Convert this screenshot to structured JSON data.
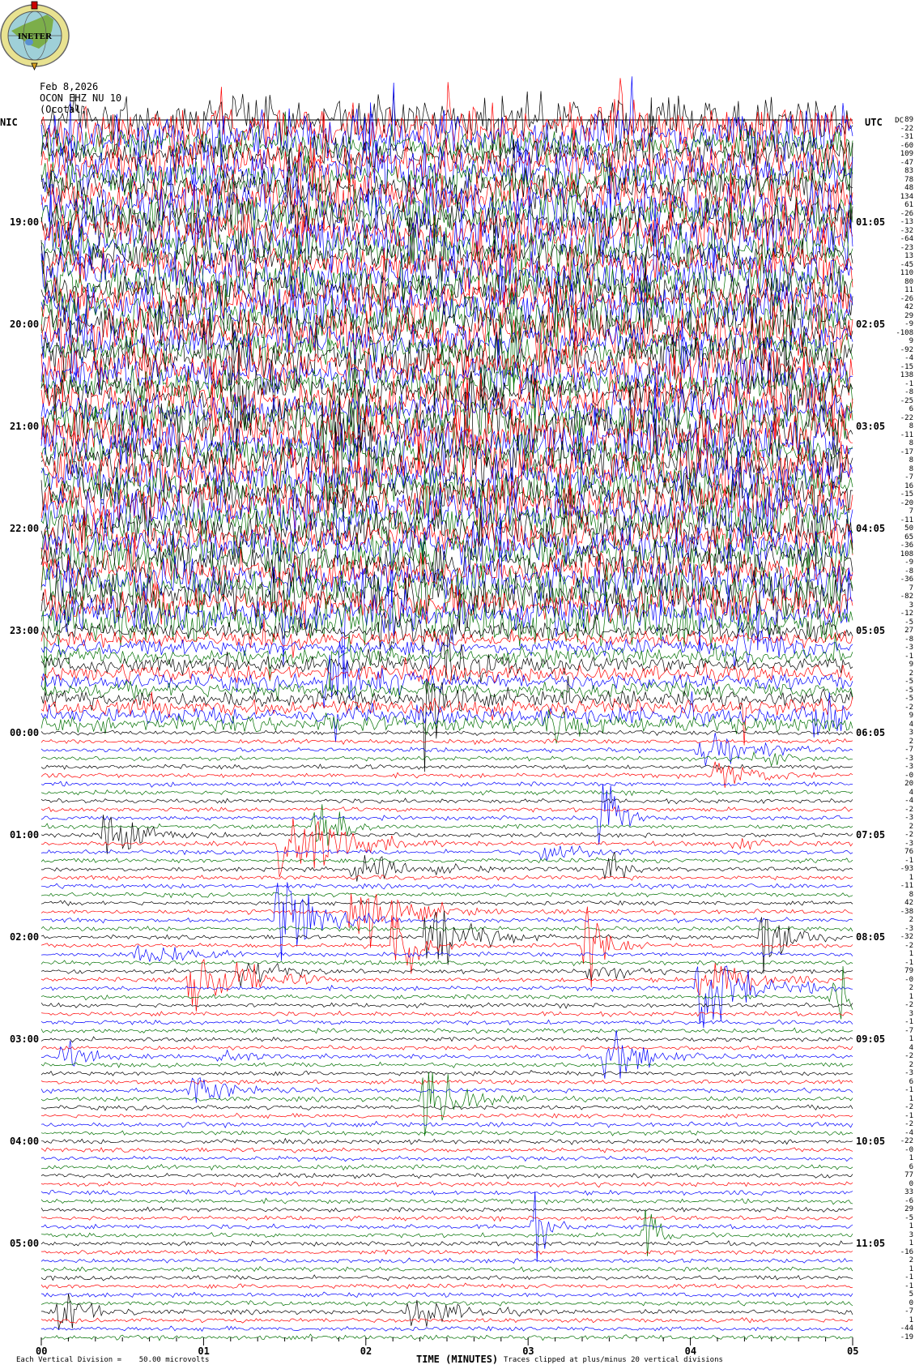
{
  "logo": {
    "text": "INETER"
  },
  "header": {
    "date": "Feb 8,2026",
    "station": "OCON EHZ NU 10",
    "location": "(Ocotal, "
  },
  "chart_data": {
    "type": "line",
    "title": "",
    "left_axis_label": "NIC",
    "right_axis_label": "UTC",
    "dc_label": "DC",
    "left_hour_labels": [
      "19:00",
      "20:00",
      "21:00",
      "22:00",
      "23:00",
      "00:00",
      "01:00",
      "02:00",
      "03:00",
      "04:00",
      "05:00"
    ],
    "right_hour_labels": [
      "01:05",
      "02:05",
      "03:05",
      "04:05",
      "05:05",
      "06:05",
      "07:05",
      "08:05",
      "09:05",
      "10:05",
      "11:05"
    ],
    "traces_per_hour": 12,
    "trace_colors": [
      "#000000",
      "#ff0000",
      "#0000ff",
      "#007000"
    ],
    "x_tick_labels": [
      "00",
      "01",
      "02",
      "03",
      "04",
      "05"
    ],
    "xlabel": "TIME (MINUTES)",
    "xlim": [
      0,
      5
    ],
    "dc_offsets": [
      89,
      -22,
      -31,
      -60,
      109,
      -47,
      83,
      78,
      48,
      134,
      61,
      -26,
      -13,
      -32,
      -64,
      -23,
      13,
      -45,
      110,
      80,
      11,
      -26,
      42,
      29,
      -9,
      -108,
      9,
      -92,
      -4,
      -15,
      138,
      -1,
      -8,
      -25,
      6,
      -22,
      8,
      -11,
      8,
      -17,
      8,
      8,
      -7,
      16,
      -15,
      -20,
      7,
      -11,
      50,
      65,
      -36,
      108,
      -9,
      -8,
      -36,
      7,
      -82,
      3,
      -12,
      -5,
      27,
      -8,
      -3,
      -1,
      9,
      2,
      -5,
      -5,
      -5,
      -2,
      9,
      4,
      3,
      2,
      -7,
      -3,
      -3,
      "-0",
      20,
      4,
      -4,
      -2,
      -3,
      2,
      -2,
      -3,
      76,
      -1,
      -93,
      1,
      -11,
      8,
      42,
      -38,
      2,
      -3,
      -32,
      -2,
      1,
      -1,
      79,
      "-0",
      2,
      1,
      -2,
      3,
      -1,
      -7,
      1,
      4,
      -2,
      2,
      -3,
      6,
      -1,
      1,
      -2,
      -1,
      -2,
      -4,
      -22,
      "-0",
      1,
      6,
      77,
      0,
      33,
      -6,
      29,
      -5,
      1,
      3,
      1,
      -16,
      2,
      1,
      -1,
      -1,
      5,
      0,
      -7,
      1,
      -44,
      -19
    ],
    "scale_note": "Each Vertical Division =    50.00 microvolts",
    "clip_note": "Traces clipped at plus/minus 20 vertical divisions"
  }
}
